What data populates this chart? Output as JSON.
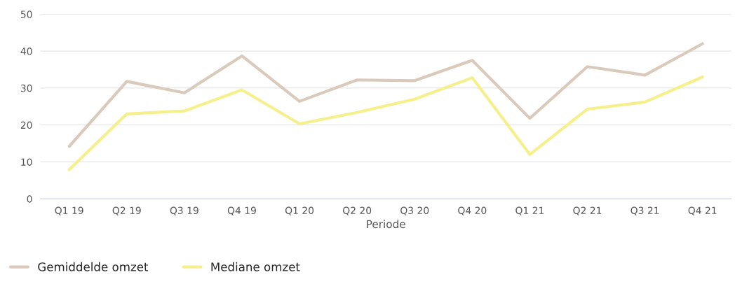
{
  "chart_data": {
    "type": "line",
    "xlabel": "Periode",
    "categories": [
      "Q1 19",
      "Q2 19",
      "Q3 19",
      "Q4 19",
      "Q1 20",
      "Q2 20",
      "Q3 20",
      "Q4 20",
      "Q1 21",
      "Q2 21",
      "Q3 21",
      "Q4 21"
    ],
    "series": [
      {
        "name": "Gemiddelde omzet",
        "color": "#d9cabb",
        "values": [
          14.2,
          31.8,
          28.7,
          38.7,
          26.4,
          32.2,
          32,
          37.5,
          21.8,
          35.8,
          33.5,
          42
        ]
      },
      {
        "name": "Mediane omzet",
        "color": "#f5f08c",
        "values": [
          7.9,
          23,
          23.8,
          29.5,
          20.3,
          23.4,
          27,
          32.8,
          12,
          24.3,
          26.2,
          33
        ]
      }
    ],
    "ylim": [
      0,
      50
    ],
    "yticks": [
      0,
      10,
      20,
      30,
      40,
      50
    ],
    "grid": "y",
    "legend": "bottom left",
    "marker": "none",
    "line_style": "solid"
  }
}
